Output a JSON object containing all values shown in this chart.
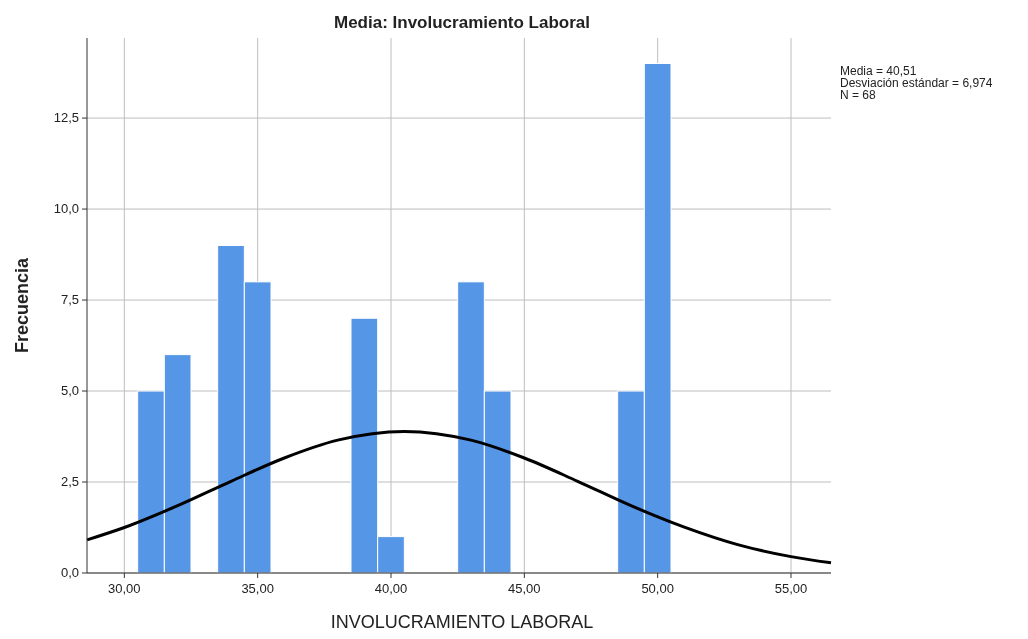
{
  "chart_data": {
    "type": "histogram",
    "title": "Media: Involucramiento Laboral",
    "xlabel": "INVOLUCRAMIENTO LABORAL",
    "ylabel": "Frecuencia",
    "annotations": [
      "Media = 40,51",
      "Desviación estándar = 6,974",
      "N = 68"
    ],
    "color": "#5596e6",
    "bins": [
      30.5,
      31.5,
      32.5,
      33.5,
      34.5,
      35.5,
      36.5,
      37.5,
      38.5,
      39.5,
      40.5,
      41.5,
      42.5,
      43.5,
      44.5,
      45.5,
      46.5,
      47.5,
      48.5,
      49.5,
      50.5
    ],
    "values": [
      5,
      6,
      0,
      9,
      8,
      0,
      0,
      0,
      7,
      1,
      0,
      0,
      8,
      5,
      0,
      0,
      0,
      0,
      5,
      14
    ],
    "series": [
      {
        "type": "line",
        "color": "#000000",
        "x": [
          28.6,
          30,
          32,
          34,
          36,
          38,
          40.5,
          43,
          45,
          47,
          49,
          51,
          53,
          55,
          56.5
        ],
        "values": [
          0.91,
          1.25,
          1.85,
          2.52,
          3.16,
          3.65,
          3.89,
          3.65,
          3.16,
          2.52,
          1.85,
          1.26,
          0.78,
          0.45,
          0.28
        ]
      }
    ],
    "xlim": [
      28.6,
      56.5
    ],
    "ylim": [
      0,
      14.7
    ],
    "xticks": [
      {
        "value": 30,
        "label": "30,00"
      },
      {
        "value": 35,
        "label": "35,00"
      },
      {
        "value": 40,
        "label": "40,00"
      },
      {
        "value": 45,
        "label": "45,00"
      },
      {
        "value": 50,
        "label": "50,00"
      },
      {
        "value": 55,
        "label": "55,00"
      }
    ],
    "yticks": [
      {
        "value": 0,
        "label": "0,0"
      },
      {
        "value": 2.5,
        "label": "2,5"
      },
      {
        "value": 5,
        "label": "5,0"
      },
      {
        "value": 7.5,
        "label": "7,5"
      },
      {
        "value": 10,
        "label": "10,0"
      },
      {
        "value": 12.5,
        "label": "12,5"
      }
    ],
    "grid": true,
    "line_style": "solid",
    "marker": "none"
  }
}
